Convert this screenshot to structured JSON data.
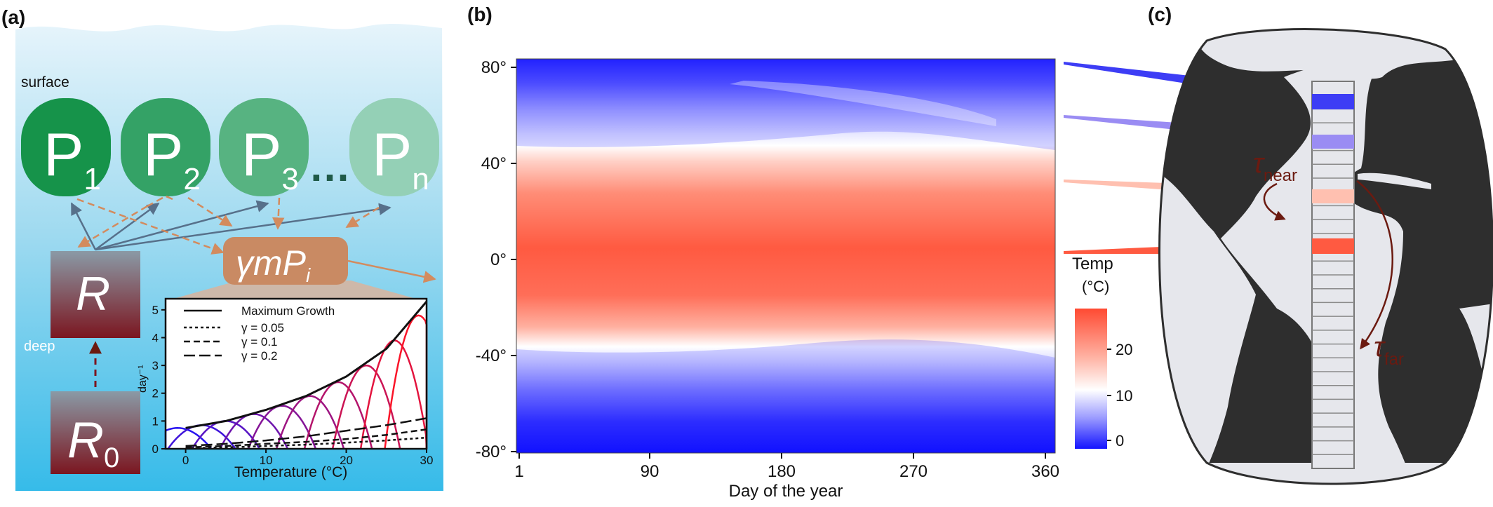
{
  "panels": {
    "a": {
      "label": "(a)",
      "surface_label": "surface",
      "deep_label": "deep",
      "nodes": [
        {
          "base": "P",
          "sub": "1"
        },
        {
          "base": "P",
          "sub": "2"
        },
        {
          "base": "P",
          "sub": "3"
        },
        {
          "base": "P",
          "sub": "n"
        }
      ],
      "dots": "…",
      "R_label": "R",
      "R0_base": "R",
      "R0_sub": "0",
      "gamma_base": "γmP",
      "gamma_sub": "i",
      "inset": {
        "legend": [
          "Maximum Growth",
          "γ = 0.05",
          "γ = 0.1",
          "γ = 0.2"
        ],
        "ylabel": "day⁻¹",
        "xlabel": "Temperature (°C)",
        "x_ticks": [
          "0",
          "10",
          "20",
          "30"
        ],
        "y_ticks": [
          "0",
          "1",
          "2",
          "3",
          "4",
          "5"
        ]
      }
    },
    "b": {
      "label": "(b)",
      "xlabel": "Day of the year",
      "x_ticks": [
        "1",
        "90",
        "180",
        "270",
        "360"
      ],
      "y_ticks": [
        "80°",
        "40°",
        "0°",
        "-40°",
        "-80°"
      ],
      "colorbar_title": "Temp",
      "colorbar_unit": "(°C)",
      "colorbar_ticks": [
        "20",
        "10",
        "0"
      ]
    },
    "c": {
      "label": "(c)",
      "tau_near_base": "τ",
      "tau_near_sub": "near",
      "tau_far_base": "τ",
      "tau_far_sub": "far"
    }
  },
  "colors": {
    "water_top": "#dff1fb",
    "water_bottom": "#3cbde8",
    "node_colors": [
      "#169247",
      "#34a266",
      "#55b07f",
      "#93d0b5"
    ],
    "gamma_box": "#c98a63",
    "land": "#2e2e2e",
    "ocean_map": "#e7e8ee",
    "heat_cold": "#1a1aff",
    "heat_mid": "#ffffff",
    "heat_hot": "#ff4a32",
    "brown_arrow": "#6b1a10"
  },
  "chart_data": {
    "type": "line",
    "x": [
      0,
      5,
      10,
      15,
      20,
      25,
      30
    ],
    "series": [
      {
        "name": "Maximum Growth",
        "values": [
          0.75,
          1.0,
          1.4,
          1.9,
          2.6,
          3.6,
          5.3
        ]
      },
      {
        "name": "γ = 0.05",
        "values": [
          0.02,
          0.05,
          0.1,
          0.15,
          0.22,
          0.3,
          0.4
        ]
      },
      {
        "name": "γ = 0.1",
        "values": [
          0.05,
          0.1,
          0.18,
          0.25,
          0.35,
          0.5,
          0.7
        ]
      },
      {
        "name": "γ = 0.2",
        "values": [
          0.1,
          0.18,
          0.3,
          0.45,
          0.65,
          0.85,
          1.1
        ]
      }
    ],
    "peaks": [
      {
        "x": -1,
        "y": 0.75
      },
      {
        "x": 2,
        "y": 0.85
      },
      {
        "x": 5,
        "y": 1.0
      },
      {
        "x": 8.5,
        "y": 1.25
      },
      {
        "x": 12,
        "y": 1.55
      },
      {
        "x": 15.5,
        "y": 1.9
      },
      {
        "x": 19,
        "y": 2.4
      },
      {
        "x": 22.5,
        "y": 3.0
      },
      {
        "x": 26,
        "y": 3.9
      },
      {
        "x": 29,
        "y": 4.8
      }
    ],
    "xlabel": "Temperature (°C)",
    "ylabel": "day⁻¹",
    "xlim": [
      -2.5,
      30
    ],
    "ylim": [
      0,
      5.4
    ]
  }
}
